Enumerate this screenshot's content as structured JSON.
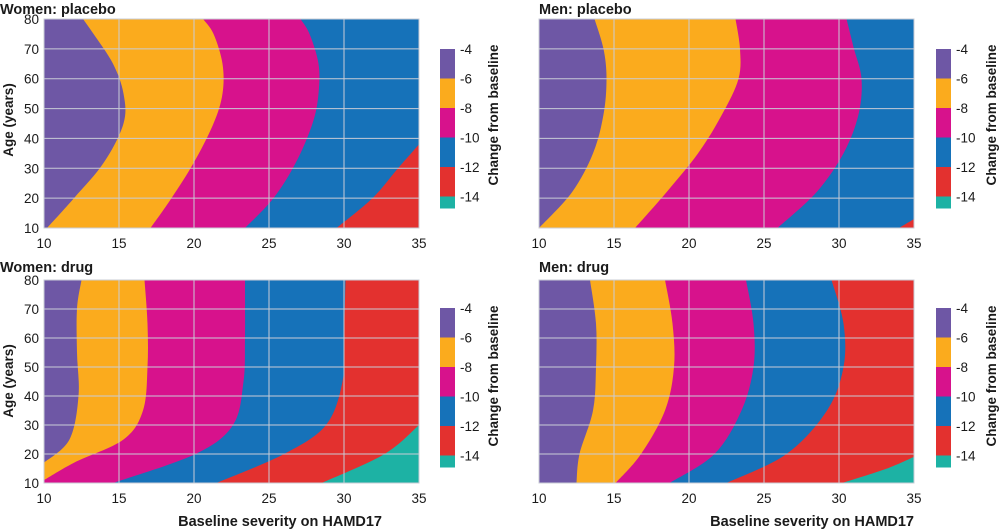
{
  "figure": {
    "xlabel": "Baseline severity on HAMD17",
    "ylabel": "Age (years)",
    "colorbar_label": "Change from baseline"
  },
  "colors": {
    "-4": "#6e57a5",
    "-6": "#fbab1d",
    "-8": "#d7128c",
    "-10": "#1672b9",
    "-12": "#e3312f",
    "-14": "#1db2a4",
    "grid": "#c9ccd6"
  },
  "chart_data": [
    {
      "type": "heatmap",
      "title": "Women: placebo",
      "x_range": [
        10,
        35
      ],
      "y_range": [
        10,
        80
      ],
      "x_ticks": [
        "10",
        "15",
        "20",
        "25",
        "30",
        "35"
      ],
      "y_ticks": [
        "10",
        "20",
        "30",
        "40",
        "50",
        "60",
        "70",
        "80"
      ],
      "colorbar_ticks": [
        "-4",
        "-6",
        "-8",
        "-10",
        "-12",
        "-14"
      ],
      "boundaries": [
        {
          "between": [
            "-4",
            "-6"
          ],
          "points": [
            [
              10.2,
              10
            ],
            [
              12,
              20
            ],
            [
              14,
              32
            ],
            [
              15.3,
              45
            ],
            [
              15.3,
              55
            ],
            [
              14.6,
              65
            ],
            [
              13.3,
              75
            ],
            [
              12.6,
              80
            ]
          ]
        },
        {
          "between": [
            "-6",
            "-8"
          ],
          "points": [
            [
              17.1,
              10
            ],
            [
              18.5,
              20
            ],
            [
              20,
              32
            ],
            [
              21.3,
              45
            ],
            [
              21.9,
              55
            ],
            [
              21.9,
              65
            ],
            [
              21.3,
              75
            ],
            [
              20.6,
              80
            ]
          ]
        },
        {
          "between": [
            "-8",
            "-10"
          ],
          "points": [
            [
              23.4,
              10
            ],
            [
              25.3,
              20
            ],
            [
              26.8,
              32
            ],
            [
              27.9,
              45
            ],
            [
              28.3,
              55
            ],
            [
              28.3,
              65
            ],
            [
              27.7,
              75
            ],
            [
              27.1,
              80
            ]
          ]
        },
        {
          "between": [
            "-10",
            "-12"
          ],
          "points": [
            [
              29.5,
              10
            ],
            [
              31.9,
              20
            ],
            [
              33.6,
              30
            ],
            [
              35,
              38
            ]
          ]
        }
      ]
    },
    {
      "type": "heatmap",
      "title": "Men: placebo",
      "x_range": [
        10,
        35
      ],
      "y_range": [
        10,
        80
      ],
      "x_ticks": [
        "10",
        "15",
        "20",
        "25",
        "30",
        "35"
      ],
      "y_ticks": [
        "10",
        "20",
        "30",
        "40",
        "50",
        "60",
        "70",
        "80"
      ],
      "colorbar_ticks": [
        "-4",
        "-6",
        "-8",
        "-10",
        "-12",
        "-14"
      ],
      "boundaries": [
        {
          "between": [
            "-4",
            "-6"
          ],
          "points": [
            [
              10,
              10
            ],
            [
              12.2,
              22
            ],
            [
              13.6,
              35
            ],
            [
              14.3,
              48
            ],
            [
              14.5,
              60
            ],
            [
              14.3,
              70
            ],
            [
              13.7,
              80
            ]
          ]
        },
        {
          "between": [
            "-6",
            "-8"
          ],
          "points": [
            [
              16.4,
              10
            ],
            [
              18.5,
              22
            ],
            [
              20.6,
              35
            ],
            [
              22.2,
              48
            ],
            [
              23.3,
              60
            ],
            [
              23.4,
              70
            ],
            [
              23.1,
              80
            ]
          ]
        },
        {
          "between": [
            "-8",
            "-10"
          ],
          "points": [
            [
              25.9,
              10
            ],
            [
              28.5,
              22
            ],
            [
              30.3,
              35
            ],
            [
              31.3,
              48
            ],
            [
              31.5,
              60
            ],
            [
              31,
              70
            ],
            [
              30.5,
              80
            ]
          ]
        },
        {
          "between": [
            "-10",
            "-12"
          ],
          "points": [
            [
              34,
              10
            ],
            [
              35,
              13
            ]
          ]
        }
      ]
    },
    {
      "type": "heatmap",
      "title": "Women: drug",
      "x_range": [
        10,
        35
      ],
      "y_range": [
        10,
        80
      ],
      "x_ticks": [
        "10",
        "15",
        "20",
        "25",
        "30",
        "35"
      ],
      "y_ticks": [
        "10",
        "20",
        "30",
        "40",
        "50",
        "60",
        "70",
        "80"
      ],
      "colorbar_ticks": [
        "-4",
        "-6",
        "-8",
        "-10",
        "-12",
        "-14"
      ],
      "boundaries": [
        {
          "between": [
            "-4",
            "-6"
          ],
          "points": [
            [
              10,
              17
            ],
            [
              11.7,
              25
            ],
            [
              12.3,
              40
            ],
            [
              12.2,
              55
            ],
            [
              12.2,
              70
            ],
            [
              12.5,
              80
            ]
          ]
        },
        {
          "between": [
            "-6",
            "-8"
          ],
          "points": [
            [
              10,
              11
            ],
            [
              12,
              17
            ],
            [
              15.3,
              25
            ],
            [
              16.6,
              35
            ],
            [
              16.9,
              50
            ],
            [
              16.9,
              65
            ],
            [
              16.7,
              80
            ]
          ]
        },
        {
          "between": [
            "-8",
            "-10"
          ],
          "points": [
            [
              14.6,
              10
            ],
            [
              20.1,
              20
            ],
            [
              22.6,
              30
            ],
            [
              23.3,
              45
            ],
            [
              23.4,
              60
            ],
            [
              23.4,
              80
            ]
          ]
        },
        {
          "between": [
            "-10",
            "-12"
          ],
          "points": [
            [
              21.5,
              10
            ],
            [
              26,
              20
            ],
            [
              28.8,
              30
            ],
            [
              29.9,
              45
            ],
            [
              30,
              60
            ],
            [
              30.1,
              80
            ]
          ]
        },
        {
          "between": [
            "-12",
            "-14"
          ],
          "points": [
            [
              28.5,
              10
            ],
            [
              32.7,
              20
            ],
            [
              35,
              30
            ]
          ]
        }
      ]
    },
    {
      "type": "heatmap",
      "title": "Men: drug",
      "x_range": [
        10,
        35
      ],
      "y_range": [
        10,
        80
      ],
      "x_ticks": [
        "10",
        "15",
        "20",
        "25",
        "30",
        "35"
      ],
      "y_ticks": [
        "10",
        "20",
        "30",
        "40",
        "50",
        "60",
        "70",
        "80"
      ],
      "colorbar_ticks": [
        "-4",
        "-6",
        "-8",
        "-10",
        "-12",
        "-14"
      ],
      "boundaries": [
        {
          "between": [
            "-4",
            "-6"
          ],
          "points": [
            [
              12.5,
              10
            ],
            [
              12.7,
              20
            ],
            [
              13.6,
              35
            ],
            [
              13.8,
              50
            ],
            [
              13.8,
              65
            ],
            [
              13.4,
              80
            ]
          ]
        },
        {
          "between": [
            "-6",
            "-8"
          ],
          "points": [
            [
              15.1,
              10
            ],
            [
              16.8,
              20
            ],
            [
              18.4,
              35
            ],
            [
              19,
              50
            ],
            [
              18.9,
              65
            ],
            [
              18.4,
              80
            ]
          ]
        },
        {
          "between": [
            "-8",
            "-10"
          ],
          "points": [
            [
              18.7,
              10
            ],
            [
              21.7,
              20
            ],
            [
              23.5,
              35
            ],
            [
              24.3,
              50
            ],
            [
              24.3,
              65
            ],
            [
              23.8,
              80
            ]
          ]
        },
        {
          "between": [
            "-10",
            "-12"
          ],
          "points": [
            [
              22.5,
              10
            ],
            [
              26.5,
              20
            ],
            [
              29.2,
              35
            ],
            [
              30.3,
              50
            ],
            [
              30.3,
              65
            ],
            [
              29.5,
              80
            ]
          ]
        },
        {
          "between": [
            "-12",
            "-14"
          ],
          "points": [
            [
              30.2,
              10
            ],
            [
              33.2,
              15
            ],
            [
              35,
              19
            ]
          ]
        }
      ]
    }
  ]
}
